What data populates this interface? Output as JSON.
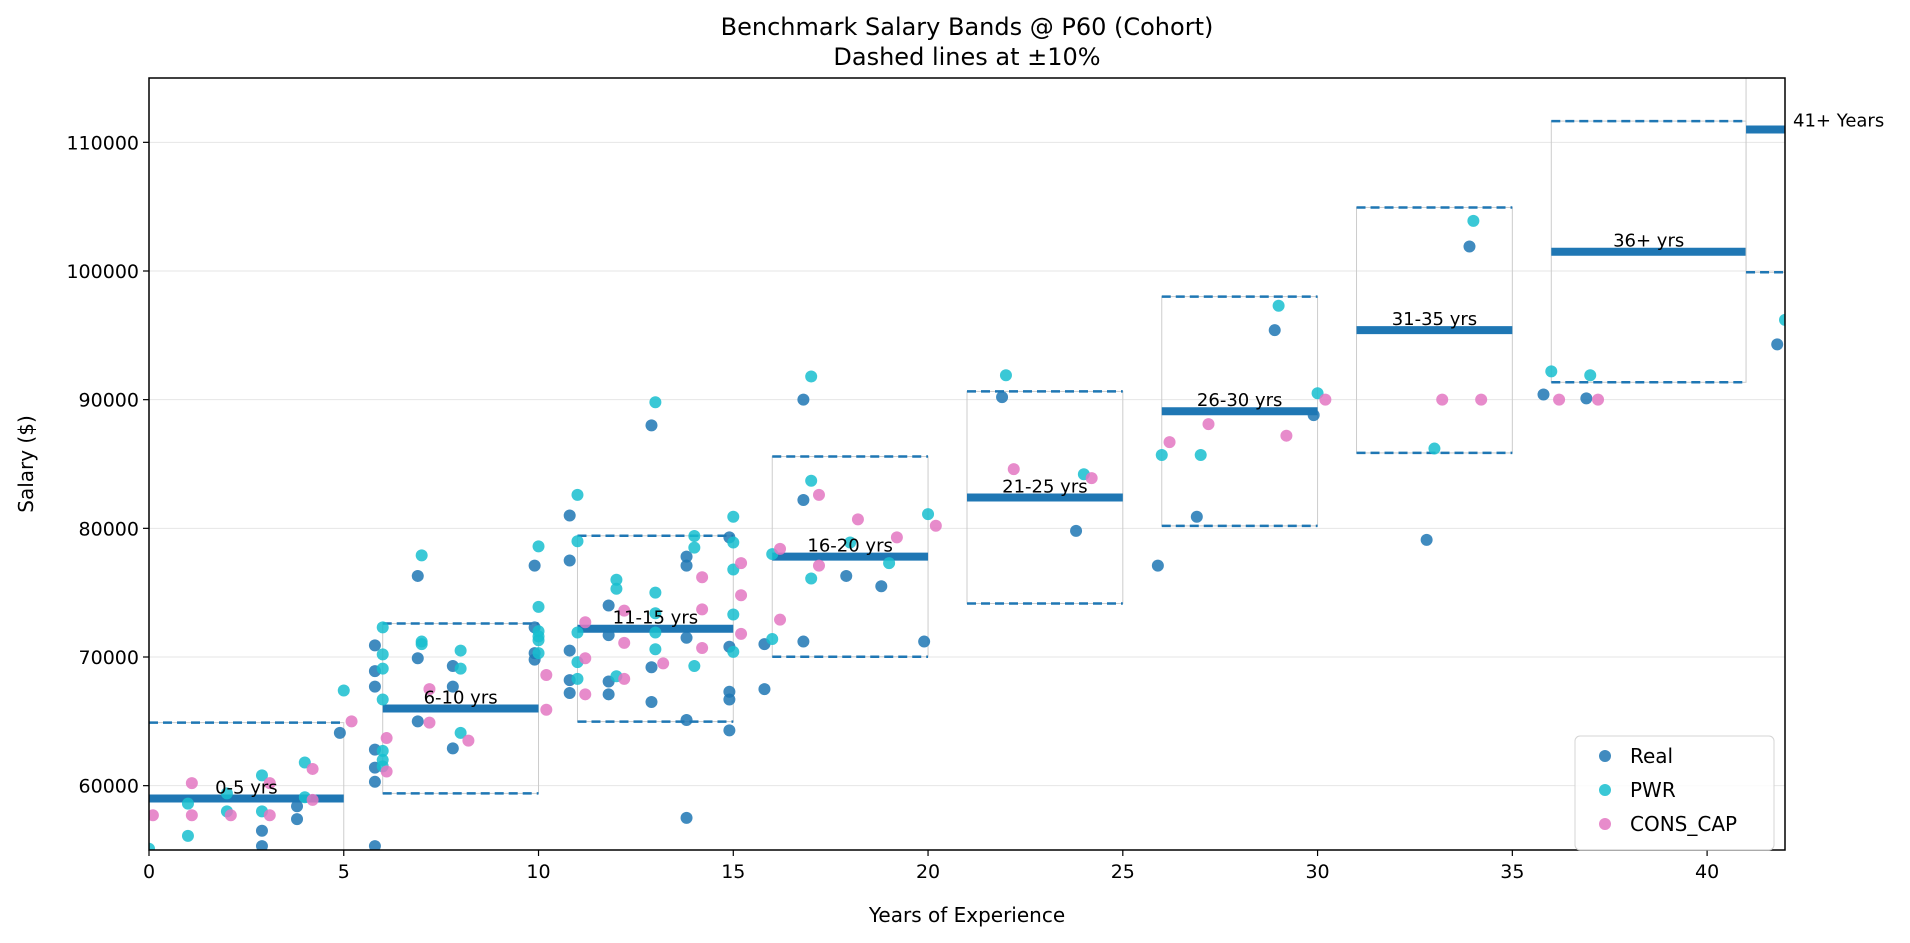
{
  "chart_data": {
    "type": "scatter",
    "title": "Benchmark Salary Bands @ P60 (Cohort)",
    "subtitle": "Dashed lines at ±10%",
    "xlabel": "Years of Experience",
    "ylabel": "Salary ($)",
    "xlim": [
      0,
      42
    ],
    "ylim": [
      55000,
      115000
    ],
    "x_ticks": [
      0,
      5,
      10,
      15,
      20,
      25,
      30,
      35,
      40
    ],
    "y_ticks": [
      60000,
      70000,
      80000,
      90000,
      100000,
      110000
    ],
    "grid": "y",
    "legend_position": "bottom-right",
    "band_offset_pct": 10,
    "colors": {
      "band": "#1f77b4",
      "band_box": "#cccccc",
      "Real": "#1f77b4",
      "PWR": "#17becf",
      "CONS_CAP": "#e377c2"
    },
    "bands": [
      {
        "label": "0-5 yrs",
        "x_start": 0,
        "x_end": 5,
        "value": 59000
      },
      {
        "label": "6-10 yrs",
        "x_start": 6,
        "x_end": 10,
        "value": 66000
      },
      {
        "label": "11-15 yrs",
        "x_start": 11,
        "x_end": 15,
        "value": 72200
      },
      {
        "label": "16-20 yrs",
        "x_start": 16,
        "x_end": 20,
        "value": 77800
      },
      {
        "label": "21-25 yrs",
        "x_start": 21,
        "x_end": 25,
        "value": 82400
      },
      {
        "label": "26-30 yrs",
        "x_start": 26,
        "x_end": 30,
        "value": 89100
      },
      {
        "label": "31-35 yrs",
        "x_start": 31,
        "x_end": 35,
        "value": 95400
      },
      {
        "label": "36+ yrs",
        "x_start": 36,
        "x_end": 41,
        "value": 101500
      },
      {
        "label": "41+ Years",
        "x_start": 41,
        "x_end": 42,
        "value": 111000
      }
    ],
    "series": [
      {
        "name": "Real",
        "points": [
          [
            2.9,
            55300
          ],
          [
            2.9,
            56500
          ],
          [
            3.8,
            57400
          ],
          [
            3.8,
            58400
          ],
          [
            4.9,
            64100
          ],
          [
            5.8,
            55300
          ],
          [
            5.8,
            60300
          ],
          [
            5.8,
            61400
          ],
          [
            5.8,
            62800
          ],
          [
            5.8,
            67700
          ],
          [
            5.8,
            68900
          ],
          [
            5.8,
            70900
          ],
          [
            6.9,
            65000
          ],
          [
            6.9,
            69900
          ],
          [
            6.9,
            76300
          ],
          [
            7.8,
            62900
          ],
          [
            7.8,
            67700
          ],
          [
            7.8,
            69300
          ],
          [
            9.9,
            69800
          ],
          [
            9.9,
            70300
          ],
          [
            9.9,
            72300
          ],
          [
            9.9,
            77100
          ],
          [
            10.8,
            67200
          ],
          [
            10.8,
            68200
          ],
          [
            10.8,
            70500
          ],
          [
            10.8,
            77500
          ],
          [
            10.8,
            81000
          ],
          [
            11.8,
            67100
          ],
          [
            11.8,
            68100
          ],
          [
            11.8,
            71700
          ],
          [
            11.8,
            74000
          ],
          [
            12.9,
            66500
          ],
          [
            12.9,
            69200
          ],
          [
            12.9,
            88000
          ],
          [
            13.8,
            57500
          ],
          [
            13.8,
            65100
          ],
          [
            13.8,
            71500
          ],
          [
            13.8,
            77100
          ],
          [
            13.8,
            77800
          ],
          [
            14.9,
            64300
          ],
          [
            14.9,
            66700
          ],
          [
            14.9,
            67300
          ],
          [
            14.9,
            70800
          ],
          [
            14.9,
            79300
          ],
          [
            15.8,
            67500
          ],
          [
            15.8,
            71000
          ],
          [
            16.8,
            71200
          ],
          [
            16.8,
            82200
          ],
          [
            16.8,
            90000
          ],
          [
            17.9,
            76300
          ],
          [
            18.8,
            75500
          ],
          [
            19.9,
            71200
          ],
          [
            21.9,
            90200
          ],
          [
            23.8,
            79800
          ],
          [
            25.9,
            77100
          ],
          [
            26.9,
            80900
          ],
          [
            28.9,
            95400
          ],
          [
            29.9,
            88800
          ],
          [
            32.8,
            79100
          ],
          [
            33.9,
            101900
          ],
          [
            35.8,
            90400
          ],
          [
            36.9,
            90100
          ],
          [
            41.8,
            94300
          ]
        ]
      },
      {
        "name": "PWR",
        "points": [
          [
            0,
            55100
          ],
          [
            1,
            56100
          ],
          [
            1,
            58600
          ],
          [
            2,
            58000
          ],
          [
            2,
            59400
          ],
          [
            2.9,
            58000
          ],
          [
            2.9,
            60800
          ],
          [
            4,
            59100
          ],
          [
            4,
            61800
          ],
          [
            5,
            67400
          ],
          [
            6,
            61500
          ],
          [
            6,
            62000
          ],
          [
            6,
            62700
          ],
          [
            6,
            66700
          ],
          [
            6,
            69100
          ],
          [
            6,
            70200
          ],
          [
            6,
            72300
          ],
          [
            7,
            71000
          ],
          [
            7,
            71200
          ],
          [
            7,
            77900
          ],
          [
            8,
            64100
          ],
          [
            8,
            69100
          ],
          [
            8,
            70500
          ],
          [
            10,
            70300
          ],
          [
            10,
            71300
          ],
          [
            10,
            71600
          ],
          [
            10,
            72000
          ],
          [
            10,
            73900
          ],
          [
            10,
            78600
          ],
          [
            11,
            68300
          ],
          [
            11,
            69600
          ],
          [
            11,
            71900
          ],
          [
            11,
            79000
          ],
          [
            11,
            82600
          ],
          [
            12,
            68500
          ],
          [
            12,
            75300
          ],
          [
            12,
            76000
          ],
          [
            13,
            70600
          ],
          [
            13,
            71900
          ],
          [
            13,
            73400
          ],
          [
            13,
            75000
          ],
          [
            13,
            89800
          ],
          [
            14,
            69300
          ],
          [
            14,
            78500
          ],
          [
            14,
            79400
          ],
          [
            15,
            70400
          ],
          [
            15,
            73300
          ],
          [
            15,
            76800
          ],
          [
            15,
            78900
          ],
          [
            15,
            80900
          ],
          [
            16,
            71400
          ],
          [
            16,
            78000
          ],
          [
            17,
            76100
          ],
          [
            17,
            83700
          ],
          [
            17,
            91800
          ],
          [
            18,
            78900
          ],
          [
            19,
            77300
          ],
          [
            20,
            81100
          ],
          [
            22,
            91900
          ],
          [
            24,
            84200
          ],
          [
            26,
            85700
          ],
          [
            27,
            85700
          ],
          [
            29,
            97300
          ],
          [
            30,
            90500
          ],
          [
            33,
            86200
          ],
          [
            34,
            103900
          ],
          [
            36,
            92200
          ],
          [
            37,
            91900
          ],
          [
            42,
            96200
          ]
        ]
      },
      {
        "name": "CONS_CAP",
        "points": [
          [
            0.1,
            57700
          ],
          [
            1.1,
            57700
          ],
          [
            1.1,
            60200
          ],
          [
            2.1,
            57700
          ],
          [
            3.1,
            57700
          ],
          [
            3.1,
            60200
          ],
          [
            4.2,
            58900
          ],
          [
            4.2,
            61300
          ],
          [
            5.2,
            65000
          ],
          [
            6.1,
            61100
          ],
          [
            6.1,
            63700
          ],
          [
            7.2,
            64900
          ],
          [
            7.2,
            67500
          ],
          [
            8.2,
            63500
          ],
          [
            10.2,
            65900
          ],
          [
            10.2,
            68600
          ],
          [
            11.2,
            67100
          ],
          [
            11.2,
            69900
          ],
          [
            11.2,
            72700
          ],
          [
            12.2,
            68300
          ],
          [
            12.2,
            71100
          ],
          [
            12.2,
            73600
          ],
          [
            13.2,
            69500
          ],
          [
            14.2,
            70700
          ],
          [
            14.2,
            73700
          ],
          [
            14.2,
            76200
          ],
          [
            15.2,
            71800
          ],
          [
            15.2,
            74800
          ],
          [
            15.2,
            77300
          ],
          [
            16.2,
            72900
          ],
          [
            16.2,
            78400
          ],
          [
            17.2,
            77100
          ],
          [
            17.2,
            82600
          ],
          [
            18.2,
            80700
          ],
          [
            19.2,
            79300
          ],
          [
            20.2,
            80200
          ],
          [
            22.2,
            84600
          ],
          [
            24.2,
            83900
          ],
          [
            26.2,
            86700
          ],
          [
            27.2,
            88100
          ],
          [
            29.2,
            87200
          ],
          [
            30.2,
            90000
          ],
          [
            33.2,
            90000
          ],
          [
            34.2,
            90000
          ],
          [
            36.2,
            90000
          ],
          [
            37.2,
            90000
          ]
        ]
      }
    ]
  }
}
